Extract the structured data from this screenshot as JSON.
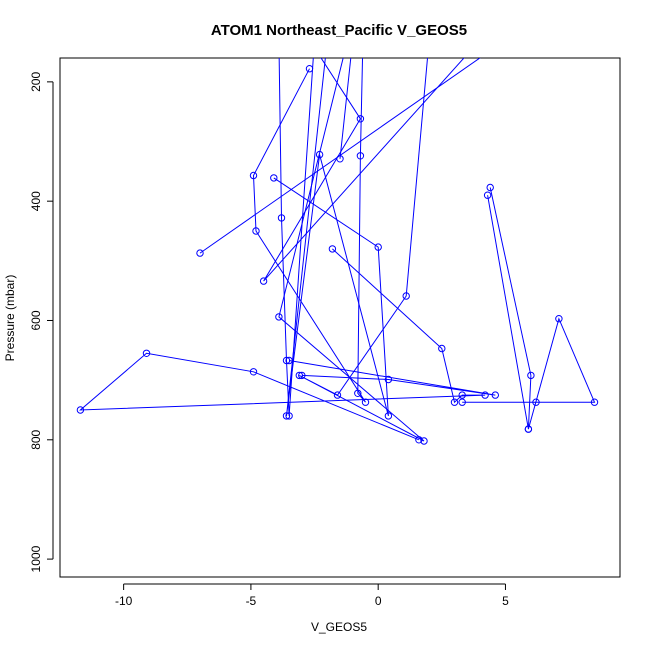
{
  "chart_data": {
    "type": "line",
    "title": "ATOM1 Northeast_Pacific V_GEOS5",
    "xlabel": "V_GEOS5",
    "ylabel": "Pressure (mbar)",
    "xlim": [
      -12.5,
      9.5
    ],
    "ylim": [
      1030,
      160
    ],
    "y_reversed": true,
    "x_ticks": [
      -10,
      -5,
      0,
      5
    ],
    "y_ticks": [
      200,
      400,
      600,
      800,
      1000
    ],
    "series": [
      {
        "color": "#0000ff",
        "marker": "open-circle",
        "points": [
          {
            "x": -3.9,
            "y": 130,
            "marker": false
          },
          {
            "x": -3.8,
            "y": 428
          },
          {
            "x": -3.6,
            "y": 667
          },
          {
            "x": -3.5,
            "y": 760
          },
          {
            "x": -2.5,
            "y": 130,
            "marker": false
          }
        ]
      },
      {
        "color": "#0000ff",
        "marker": "open-circle",
        "points": [
          {
            "x": -2.7,
            "y": 178
          },
          {
            "x": -4.9,
            "y": 357
          },
          {
            "x": -4.8,
            "y": 450
          },
          {
            "x": -0.5,
            "y": 737
          },
          {
            "x": -0.8,
            "y": 722
          },
          {
            "x": -0.7,
            "y": 324
          },
          {
            "x": -0.6,
            "y": 130,
            "marker": false
          }
        ]
      },
      {
        "color": "#0000ff",
        "marker": "open-circle",
        "points": [
          {
            "x": -1.2,
            "y": 130,
            "marker": false
          },
          {
            "x": -3.9,
            "y": 594
          },
          {
            "x": 1.8,
            "y": 802
          },
          {
            "x": -3.1,
            "y": 692
          },
          {
            "x": -1.6,
            "y": 725
          },
          {
            "x": 1.1,
            "y": 559
          },
          {
            "x": 2.0,
            "y": 130,
            "marker": false
          }
        ]
      },
      {
        "color": "#0000ff",
        "marker": "open-circle",
        "points": [
          {
            "x": -2.7,
            "y": 130,
            "marker": false
          },
          {
            "x": -0.7,
            "y": 262
          },
          {
            "x": -4.5,
            "y": 534
          },
          {
            "x": 4.0,
            "y": 130,
            "marker": false
          }
        ]
      },
      {
        "color": "#0000ff",
        "marker": "open-circle",
        "points": [
          {
            "x": -4.1,
            "y": 361
          },
          {
            "x": 0.0,
            "y": 477
          },
          {
            "x": 0.4,
            "y": 760
          },
          {
            "x": -2.3,
            "y": 322
          },
          {
            "x": -3.6,
            "y": 760
          },
          {
            "x": -2.0,
            "y": 130,
            "marker": false
          }
        ]
      },
      {
        "color": "#0000ff",
        "marker": "open-circle",
        "points": [
          {
            "x": -7.0,
            "y": 487
          },
          {
            "x": 5.0,
            "y": 130,
            "marker": false
          }
        ]
      },
      {
        "color": "#0000ff",
        "marker": "open-circle",
        "points": [
          {
            "x": -1.5,
            "y": 329
          },
          {
            "x": -1.0,
            "y": 130,
            "marker": false
          }
        ]
      },
      {
        "color": "#0000ff",
        "marker": "open-circle",
        "points": [
          {
            "x": -1.8,
            "y": 480
          },
          {
            "x": 2.5,
            "y": 647
          },
          {
            "x": 3.0,
            "y": 737
          },
          {
            "x": 3.3,
            "y": 725
          },
          {
            "x": 4.2,
            "y": 725
          },
          {
            "x": -11.7,
            "y": 750
          },
          {
            "x": -9.1,
            "y": 655
          },
          {
            "x": -4.9,
            "y": 686
          },
          {
            "x": 1.6,
            "y": 800
          }
        ]
      },
      {
        "color": "#0000ff",
        "marker": "open-circle",
        "points": [
          {
            "x": -3.5,
            "y": 667
          },
          {
            "x": 4.6,
            "y": 725
          },
          {
            "x": 0.4,
            "y": 699
          },
          {
            "x": -3.0,
            "y": 692
          }
        ]
      },
      {
        "color": "#0000ff",
        "marker": "open-circle",
        "points": [
          {
            "x": 4.4,
            "y": 377
          },
          {
            "x": 6.0,
            "y": 692
          },
          {
            "x": 5.9,
            "y": 782
          },
          {
            "x": 4.3,
            "y": 390
          }
        ]
      },
      {
        "color": "#0000ff",
        "marker": "open-circle",
        "points": [
          {
            "x": 3.3,
            "y": 737
          },
          {
            "x": 6.2,
            "y": 737
          },
          {
            "x": 8.5,
            "y": 737
          },
          {
            "x": 7.1,
            "y": 597
          },
          {
            "x": 5.9,
            "y": 782
          }
        ]
      }
    ]
  }
}
